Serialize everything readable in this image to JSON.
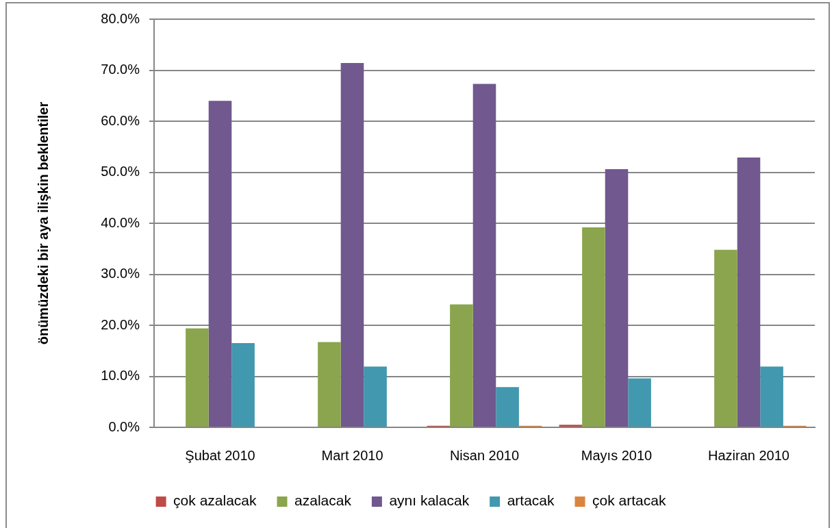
{
  "chart_data": {
    "type": "bar",
    "ylabel": "önümüzdeki bir aya ilişkin beklentiler",
    "categories": [
      "Şubat 2010",
      "Mart 2010",
      "Nisan 2010",
      "Mayıs 2010",
      "Haziran 2010"
    ],
    "series": [
      {
        "name": "çok azalacak",
        "color": "#be4b48",
        "values": [
          0,
          0,
          0.3,
          0.5,
          0
        ]
      },
      {
        "name": "azalacak",
        "color": "#8aa54d",
        "values": [
          19.4,
          16.7,
          24.1,
          39.2,
          34.8
        ]
      },
      {
        "name": "aynı kalacak",
        "color": "#71588f",
        "values": [
          64.0,
          71.4,
          67.3,
          50.6,
          52.9
        ]
      },
      {
        "name": "artacak",
        "color": "#4198af",
        "values": [
          16.5,
          11.9,
          7.9,
          9.6,
          11.9
        ]
      },
      {
        "name": "çok artacak",
        "color": "#db843d",
        "values": [
          0,
          0,
          0.3,
          0,
          0.3
        ]
      }
    ],
    "ylim": [
      0,
      80
    ],
    "yticks": [
      {
        "value": 0,
        "label": "0.0%"
      },
      {
        "value": 10,
        "label": "10.0%"
      },
      {
        "value": 20,
        "label": "20.0%"
      },
      {
        "value": 30,
        "label": "30.0%"
      },
      {
        "value": 40,
        "label": "40.0%"
      },
      {
        "value": 50,
        "label": "50.0%"
      },
      {
        "value": 60,
        "label": "60.0%"
      },
      {
        "value": 70,
        "label": "70.0%"
      },
      {
        "value": 80,
        "label": "80.0%"
      }
    ],
    "grid": "y",
    "legend": "bottom"
  }
}
